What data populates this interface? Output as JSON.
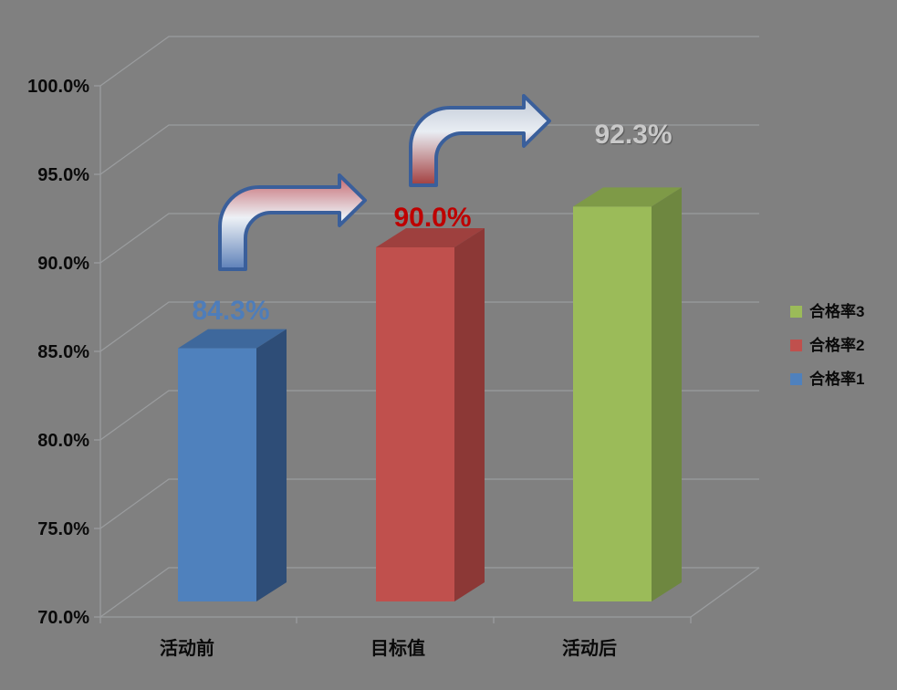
{
  "background": "#808080",
  "chart_data": {
    "type": "bar",
    "variant": "3d-column",
    "title": "",
    "xlabel": "",
    "ylabel": "",
    "grid": true,
    "ylim": [
      70,
      100
    ],
    "yticks": [
      70,
      75,
      80,
      85,
      90,
      95,
      100
    ],
    "ytick_labels": [
      "70.0%",
      "75.0%",
      "80.0%",
      "85.0%",
      "90.0%",
      "95.0%",
      "100.0%"
    ],
    "categories": [
      "活动前",
      "目标值",
      "活动后"
    ],
    "series": [
      {
        "name": "合格率1",
        "category": "活动前",
        "value": 84.3,
        "label": "84.3%",
        "color": "#4F81BD",
        "color_top": "#3E689C",
        "color_side": "#2E4D77",
        "label_color": "#4E7DBA"
      },
      {
        "name": "合格率2",
        "category": "目标值",
        "value": 90.0,
        "label": "90.0%",
        "color": "#C0504D",
        "color_top": "#9E403E",
        "color_side": "#8C3836",
        "label_color": "#BE0000"
      },
      {
        "name": "合格率3",
        "category": "活动后",
        "value": 92.3,
        "label": "92.3%",
        "color": "#9BBB59",
        "color_top": "#7E9A47",
        "color_side": "#6E8740",
        "label_color": "#C9C9C9"
      }
    ],
    "legend_position": "right",
    "legend": [
      {
        "label": "合格率3",
        "color": "#9BBB59"
      },
      {
        "label": "合格率2",
        "color": "#C0504D"
      },
      {
        "label": "合格率1",
        "color": "#4F81BD"
      }
    ]
  },
  "decorations": {
    "axis_color": "#9A9C9E",
    "arrows": [
      {
        "name": "arrow-before-to-target",
        "outline": "#3A5F9B",
        "gradient": [
          "#C4646B",
          "#EDF1F6",
          "#5D80B8"
        ]
      },
      {
        "name": "arrow-target-to-after",
        "outline": "#3A5F9B",
        "gradient": [
          "#BFC9D6",
          "#E9EDF3",
          "#A23E3E"
        ]
      }
    ]
  }
}
